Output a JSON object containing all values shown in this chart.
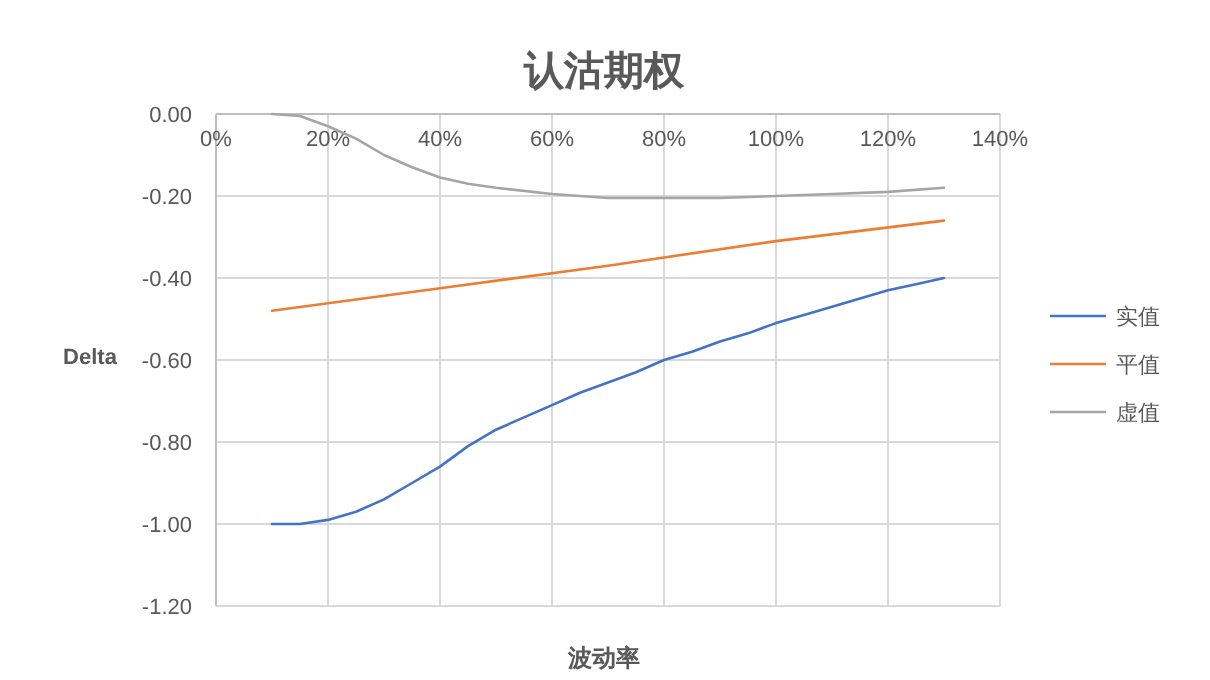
{
  "chart_data": {
    "type": "line",
    "title": "认沽期权",
    "xlabel": "波动率",
    "ylabel": "Delta",
    "xlim": [
      0,
      1.4
    ],
    "xticks": [
      {
        "value": 0,
        "label": "0%"
      },
      {
        "value": 0.2,
        "label": "20%"
      },
      {
        "value": 0.4,
        "label": "40%"
      },
      {
        "value": 0.6,
        "label": "60%"
      },
      {
        "value": 0.8,
        "label": "80%"
      },
      {
        "value": 1.0,
        "label": "100%"
      },
      {
        "value": 1.2,
        "label": "120%"
      },
      {
        "value": 1.4,
        "label": "140%"
      }
    ],
    "ylim": [
      -1.2,
      0
    ],
    "yticks": [
      {
        "value": -1.2,
        "label": "-1.20"
      },
      {
        "value": -1.0,
        "label": "-1.00"
      },
      {
        "value": -0.8,
        "label": "-0.80"
      },
      {
        "value": -0.6,
        "label": "-0.60"
      },
      {
        "value": -0.4,
        "label": "-0.40"
      },
      {
        "value": -0.2,
        "label": "-0.20"
      },
      {
        "value": 0,
        "label": "0.00"
      }
    ],
    "grid": true,
    "legend": "right",
    "series": [
      {
        "name": "实值",
        "color": "#4472c4",
        "x": [
          0.1,
          0.15,
          0.2,
          0.25,
          0.3,
          0.35,
          0.4,
          0.45,
          0.5,
          0.55,
          0.6,
          0.65,
          0.7,
          0.75,
          0.8,
          0.85,
          0.9,
          0.95,
          1.0,
          1.05,
          1.1,
          1.15,
          1.2,
          1.25,
          1.3
        ],
        "values": [
          -1.0,
          -1.0,
          -0.99,
          -0.97,
          -0.94,
          -0.9,
          -0.86,
          -0.81,
          -0.77,
          -0.74,
          -0.71,
          -0.68,
          -0.655,
          -0.63,
          -0.6,
          -0.58,
          -0.555,
          -0.535,
          -0.51,
          -0.49,
          -0.47,
          -0.45,
          -0.43,
          -0.415,
          -0.4
        ]
      },
      {
        "name": "平值",
        "color": "#ed7d31",
        "x": [
          0.1,
          0.4,
          0.7,
          1.0,
          1.3
        ],
        "values": [
          -0.48,
          -0.425,
          -0.37,
          -0.31,
          -0.26
        ]
      },
      {
        "name": "虚值",
        "color": "#a5a5a5",
        "x": [
          0.1,
          0.15,
          0.2,
          0.25,
          0.3,
          0.35,
          0.4,
          0.45,
          0.5,
          0.6,
          0.7,
          0.8,
          0.9,
          1.0,
          1.1,
          1.2,
          1.3
        ],
        "values": [
          0.0,
          -0.005,
          -0.03,
          -0.06,
          -0.1,
          -0.13,
          -0.155,
          -0.17,
          -0.18,
          -0.195,
          -0.205,
          -0.205,
          -0.205,
          -0.2,
          -0.195,
          -0.19,
          -0.18
        ]
      }
    ]
  }
}
